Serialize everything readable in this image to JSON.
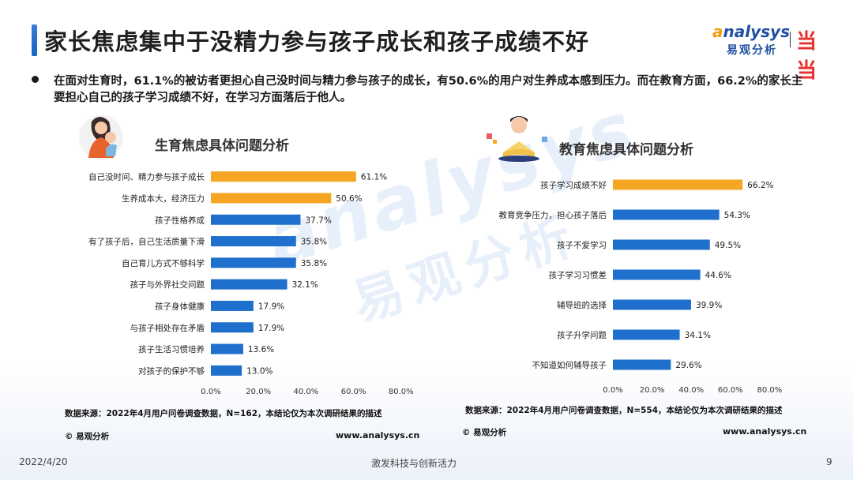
{
  "header": {
    "title": "家长焦虑集中于没精力参与孩子成长和孩子成绩不好",
    "logo_text_a": "a",
    "logo_text_rest": "nalysys",
    "logo_cn": "易观分析",
    "logo_dd": "当当"
  },
  "summary": {
    "text": "在面对生育时，61.1%的被访者更担心自己没时间与精力参与孩子的成长，有50.6%的用户对生养成本感到压力。而在教育方面，66.2%的家长主要担心自己的孩子学习成绩不好，在学习方面落后于他人。"
  },
  "watermark": {
    "line1": "analysys",
    "line2": "易观分析"
  },
  "colors": {
    "highlight": "#F5A623",
    "normal": "#1F6FCC"
  },
  "chart_data": [
    {
      "type": "bar",
      "orientation": "horizontal",
      "title": "生育焦虑具体问题分析",
      "categories": [
        "自己没时间、精力参与孩子成长",
        "生养成本大，经济压力",
        "孩子性格养成",
        "有了孩子后，自己生活质量下滑",
        "自己育儿方式不够科学",
        "孩子与外界社交问题",
        "孩子身体健康",
        "与孩子相处存在矛盾",
        "孩子生活习惯培养",
        "对孩子的保护不够"
      ],
      "values": [
        61.1,
        50.6,
        37.7,
        35.8,
        35.8,
        32.1,
        17.9,
        17.9,
        13.6,
        13.0
      ],
      "highlighted": [
        0,
        1
      ],
      "xlim": [
        0,
        80
      ],
      "xticks": [
        "0.0%",
        "20.0%",
        "40.0%",
        "60.0%",
        "80.0%"
      ],
      "value_suffix": "%",
      "source": "数据来源：2022年4月用户问卷调查数据，N=162，本结论仅为本次调研结果的描述",
      "copyright": "© 易观分析",
      "url": "www.analysys.cn"
    },
    {
      "type": "bar",
      "orientation": "horizontal",
      "title": "教育焦虑具体问题分析",
      "categories": [
        "孩子学习成绩不好",
        "教育竞争压力，担心孩子落后",
        "孩子不爱学习",
        "孩子学习习惯差",
        "辅导班的选择",
        "孩子升学问题",
        "不知道如何辅导孩子"
      ],
      "values": [
        66.2,
        54.3,
        49.5,
        44.6,
        39.9,
        34.1,
        29.6
      ],
      "highlighted": [
        0
      ],
      "xlim": [
        0,
        80
      ],
      "xticks": [
        "0.0%",
        "20.0%",
        "40.0%",
        "60.0%",
        "80.0%"
      ],
      "value_suffix": "%",
      "source": "数据来源：2022年4月用户问卷调查数据，N=554，本结论仅为本次调研结果的描述",
      "copyright": "© 易观分析",
      "url": "www.analysys.cn"
    }
  ],
  "footer": {
    "date": "2022/4/20",
    "slogan": "激发科技与创新活力",
    "page": "9"
  }
}
